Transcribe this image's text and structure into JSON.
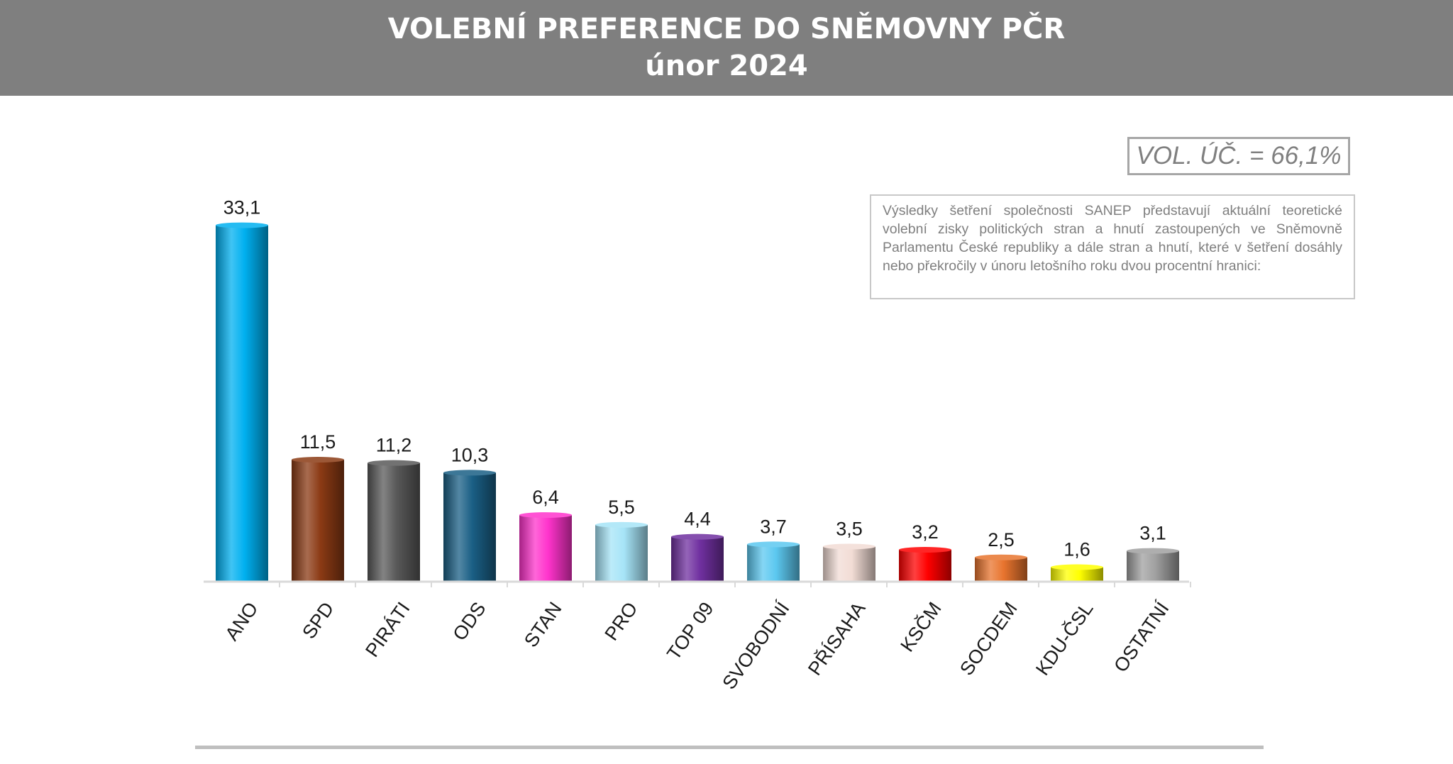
{
  "header": {
    "title": "VOLEBNÍ PREFERENCE DO SNĚMOVNY PČR",
    "subtitle": "únor 2024"
  },
  "turnout_label": "VOL. ÚČ. = 66,1%",
  "note": "Výsledky šetření společnosti SANEP představují aktuální teoretické volební zisky politických stran a hnutí zastoupených ve Sněmovně Parlamentu České republiky a dále stran a hnutí, které v šetření dosáhly nebo překročily v únoru letošního roku dvou procentní hranici:",
  "colors": {
    "header_bg": "#7f7f7f",
    "axis": "#d9d9d9"
  },
  "chart_data": {
    "type": "bar",
    "title": "VOLEBNÍ PREFERENCE DO SNĚMOVNY PČR",
    "subtitle": "únor 2024",
    "xlabel": "",
    "ylabel": "",
    "ylim": [
      0,
      35
    ],
    "grid": false,
    "legend": "none",
    "categories": [
      "ANO",
      "SPD",
      "PIRÁTI",
      "ODS",
      "STAN",
      "PRO",
      "TOP 09",
      "SVOBODNÍ",
      "PŘÍSAHA",
      "KSČM",
      "SOCDEM",
      "KDU-ČSL",
      "OSTATNÍ"
    ],
    "values": [
      33.1,
      11.5,
      11.2,
      10.3,
      6.4,
      5.5,
      4.4,
      3.7,
      3.5,
      3.2,
      2.5,
      1.6,
      3.1
    ],
    "value_labels": [
      "33,1",
      "11,5",
      "11,2",
      "10,3",
      "6,4",
      "5,5",
      "4,4",
      "3,7",
      "3,5",
      "3,2",
      "2,5",
      "1,6",
      "3,1"
    ],
    "colors": [
      "#00b0f0",
      "#8b3a14",
      "#595959",
      "#1a5f85",
      "#ff33cc",
      "#a6e4f7",
      "#7030a0",
      "#5cc8f0",
      "#f2dcd5",
      "#ff0000",
      "#e8742e",
      "#ffff00",
      "#a0a0a0"
    ]
  }
}
